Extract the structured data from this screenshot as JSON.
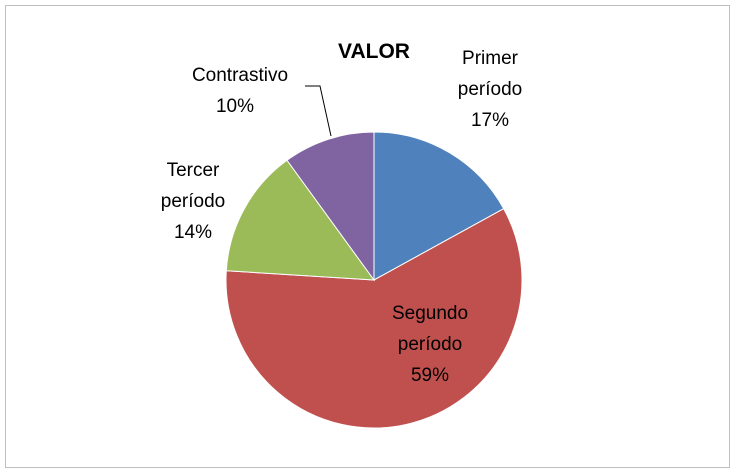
{
  "chart_data": {
    "type": "pie",
    "title": "VALOR",
    "categories": [
      "Primer período",
      "Segundo período",
      "Tercer período",
      "Contrastivo"
    ],
    "values": [
      17,
      59,
      14,
      10
    ],
    "value_labels": [
      "17%",
      "59%",
      "14%",
      "10%"
    ],
    "colors": [
      "#4f81bd",
      "#c0504d",
      "#9bbb59",
      "#8064a2"
    ]
  }
}
